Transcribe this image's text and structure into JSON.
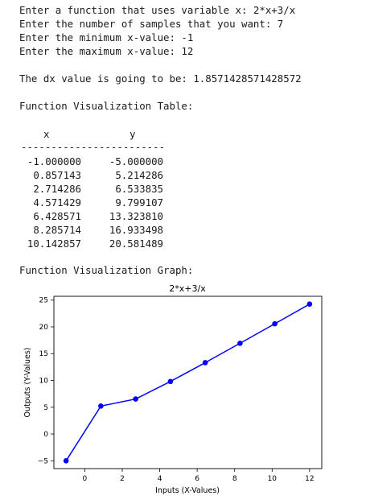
{
  "console": {
    "prompts": [
      "Enter a function that uses variable x: 2*x+3/x",
      "Enter the number of samples that you want: 7",
      "Enter the minimum x-value: -1",
      "Enter the maximum x-value: 12"
    ],
    "dx_line": "The dx value is going to be: 1.8571428571428572",
    "table_heading": "Function Visualization Table:",
    "table_header": {
      "x": "x",
      "y": "y"
    },
    "table_separator": "------------------------",
    "table_rows": [
      {
        "x": "-1.000000",
        "y": "-5.000000"
      },
      {
        "x": "0.857143",
        "y": "5.214286"
      },
      {
        "x": "2.714286",
        "y": "6.533835"
      },
      {
        "x": "4.571429",
        "y": "9.799107"
      },
      {
        "x": "6.428571",
        "y": "13.323810"
      },
      {
        "x": "8.285714",
        "y": "16.933498"
      },
      {
        "x": "10.142857",
        "y": "20.581489"
      }
    ],
    "graph_heading": "Function Visualization Graph:"
  },
  "chart_data": {
    "type": "line",
    "title": "2*x+3/x",
    "xlabel": "Inputs (X-Values)",
    "ylabel": "Outputs (Y-Values)",
    "x": [
      -1.0,
      0.857143,
      2.714286,
      4.571429,
      6.428571,
      8.285714,
      10.142857,
      12.0
    ],
    "series": [
      {
        "values": [
          -5.0,
          5.214286,
          6.533835,
          9.799107,
          13.32381,
          16.933498,
          20.581489,
          24.25
        ]
      }
    ],
    "xticks": [
      "0",
      "2",
      "4",
      "6",
      "8",
      "10",
      "12"
    ],
    "yticks": [
      "−5",
      "0",
      "5",
      "10",
      "15",
      "20",
      "25"
    ],
    "xlim": [
      -1.65,
      12.65
    ],
    "ylim": [
      -6.46,
      25.71
    ],
    "grid": false,
    "line_color": "#0000ff",
    "marker": "circle"
  }
}
